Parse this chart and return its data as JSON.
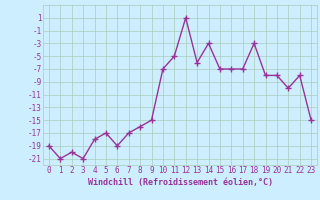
{
  "x": [
    0,
    1,
    2,
    3,
    4,
    5,
    6,
    7,
    8,
    9,
    10,
    11,
    12,
    13,
    14,
    15,
    16,
    17,
    18,
    19,
    20,
    21,
    22,
    23
  ],
  "y": [
    -19,
    -21,
    -20,
    -21,
    -18,
    -17,
    -19,
    -17,
    -16,
    -15,
    -7,
    -5,
    1,
    -6,
    -3,
    -7,
    -7,
    -7,
    -3,
    -8,
    -8,
    -10,
    -8,
    -15
  ],
  "line_color": "#993399",
  "marker_color": "#993399",
  "background_color": "#cceeff",
  "grid_color": "#aaccbb",
  "xlabel": "Windchill (Refroidissement éolien,°C)",
  "ylim": [
    -22,
    3
  ],
  "xlim": [
    -0.5,
    23.5
  ],
  "yticks": [
    1,
    -1,
    -3,
    -5,
    -7,
    -9,
    -11,
    -13,
    -15,
    -17,
    -19,
    -21
  ],
  "xticks": [
    0,
    1,
    2,
    3,
    4,
    5,
    6,
    7,
    8,
    9,
    10,
    11,
    12,
    13,
    14,
    15,
    16,
    17,
    18,
    19,
    20,
    21,
    22,
    23
  ],
  "text_color": "#993399",
  "xlabel_fontsize": 6.0,
  "tick_fontsize": 5.5,
  "marker_size": 2.5,
  "line_width": 1.0
}
